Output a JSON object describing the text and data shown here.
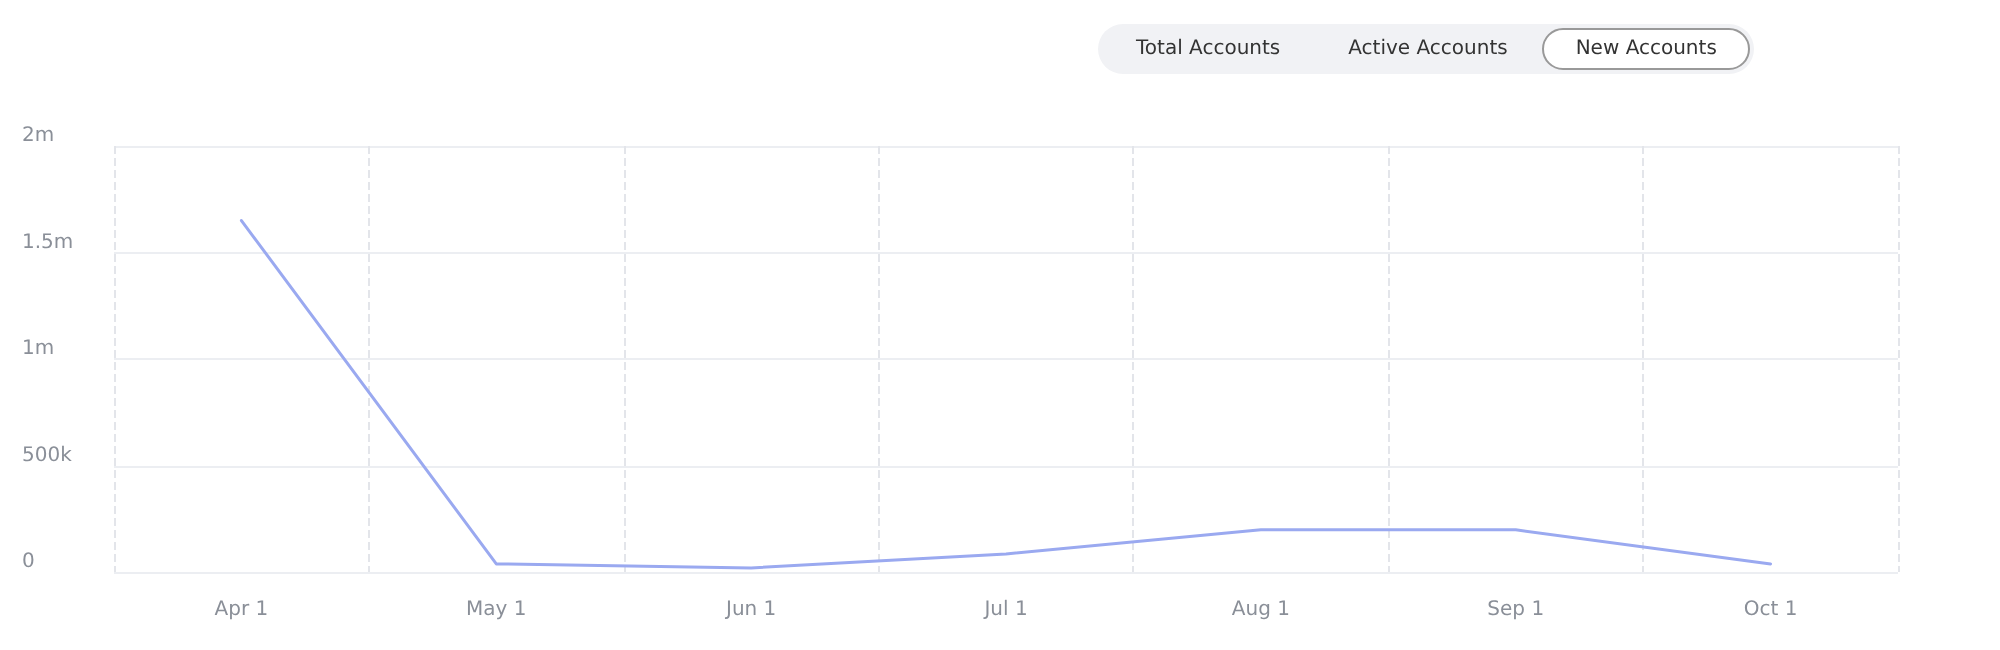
{
  "chart_data": {
    "type": "line",
    "annotations": [
      "Total Accounts",
      "Active Accounts",
      "New Accounts"
    ],
    "categories": [
      "Apr 1",
      "May 1",
      "Jun 1",
      "Jul 1",
      "Aug 1",
      "Sep 1",
      "Oct 1"
    ],
    "series": [
      {
        "color": "#9aa9f0",
        "values": [
          1650000,
          38000,
          19000,
          85000,
          198000,
          198000,
          38000
        ]
      }
    ],
    "ylim": [
      0,
      2000000
    ],
    "yticks": [
      {
        "value": 0,
        "label": "0"
      },
      {
        "value": 500000,
        "label": "500k"
      },
      {
        "value": 1000000,
        "label": "1m"
      },
      {
        "value": 1500000,
        "label": "1.5m"
      },
      {
        "value": 2000000,
        "label": "2m"
      }
    ],
    "grid": true,
    "marker": "none",
    "line_style": "solid"
  }
}
